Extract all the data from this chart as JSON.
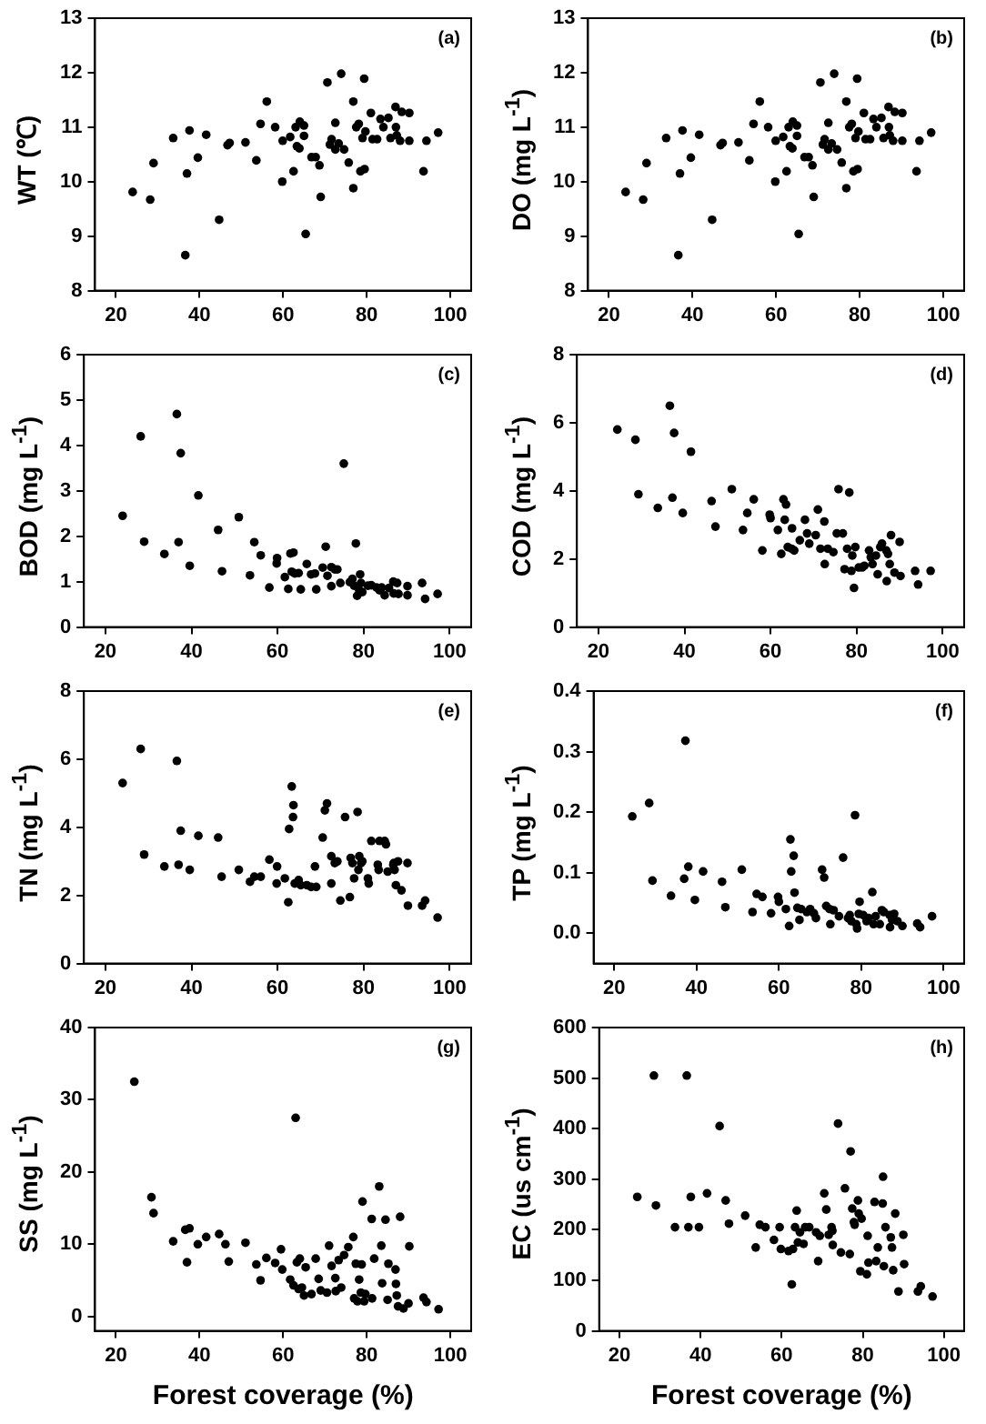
{
  "chart_data": [
    {
      "type": "scatter",
      "ylabel": "WT (℃)",
      "annotations": [
        "(a)"
      ],
      "color": "#000000",
      "marker": "circle",
      "xlim": [
        15,
        105
      ],
      "xticks": [
        20,
        40,
        60,
        80,
        100
      ],
      "ylim": [
        8,
        13
      ],
      "yticks": [
        8,
        9,
        10,
        11,
        12,
        13
      ],
      "x": [
        24,
        28.2,
        29,
        33.7,
        37,
        37.6,
        36.6,
        39.6,
        41.6,
        44.7,
        46.7,
        47.2,
        51,
        53.6,
        54.6,
        56.1,
        58.1,
        59.8,
        59.9,
        61.7,
        62.5,
        63,
        63.3,
        64,
        63.9,
        65,
        65,
        65.4,
        66.8,
        67.8,
        68.7,
        69,
        70.6,
        71.2,
        71.6,
        72.5,
        72.5,
        73.3,
        73.9,
        74.6,
        75.7,
        76.8,
        76.8,
        77.5,
        78.1,
        78.5,
        79,
        79.4,
        79.5,
        79.7,
        81,
        81.4,
        82.5,
        83.3,
        84,
        85.2,
        85.7,
        86.9,
        87,
        87.2,
        88,
        88.4,
        90.2,
        90.2,
        93.6,
        94.3,
        97.1
      ],
      "values": [
        9.81,
        9.67,
        10.34,
        10.8,
        10.15,
        10.94,
        8.65,
        10.44,
        10.86,
        9.3,
        10.67,
        10.71,
        10.72,
        10.39,
        11.06,
        11.47,
        11,
        10,
        10.75,
        10.82,
        10.19,
        11,
        10.65,
        11.1,
        10.61,
        11.03,
        10.84,
        9.04,
        10.45,
        10.45,
        10.3,
        9.72,
        11.82,
        10.68,
        10.78,
        11.08,
        10.59,
        10.7,
        11.98,
        10.59,
        10.35,
        11.47,
        9.88,
        11,
        11.06,
        10.19,
        10.8,
        11.89,
        10.23,
        10.92,
        11.26,
        10.78,
        10.78,
        11.15,
        11,
        11.17,
        10.8,
        11.37,
        11,
        10.85,
        10.75,
        11.28,
        11.26,
        10.75,
        10.19,
        10.75,
        10.9
      ]
    },
    {
      "type": "scatter",
      "ylabel": "DO (mg L$^{-1}$)",
      "annotations": [
        "(b)"
      ],
      "color": "#000000",
      "marker": "circle",
      "xlim": [
        15,
        105
      ],
      "xticks": [
        20,
        40,
        60,
        80,
        100
      ],
      "ylim": [
        8,
        13
      ],
      "yticks": [
        8,
        9,
        10,
        11,
        12,
        13
      ],
      "x": [
        24,
        28.2,
        29,
        33.7,
        37,
        37.6,
        36.6,
        39.6,
        41.6,
        44.7,
        46.7,
        47.2,
        51,
        53.6,
        54.6,
        56.1,
        58.1,
        59.8,
        59.9,
        61.7,
        62.5,
        63,
        63.3,
        64,
        63.9,
        65,
        65,
        65.4,
        66.8,
        67.8,
        68.7,
        69,
        70.6,
        71.2,
        71.6,
        72.5,
        72.5,
        73.3,
        73.9,
        74.6,
        75.7,
        76.8,
        76.8,
        77.5,
        78.1,
        78.5,
        79,
        79.4,
        79.5,
        79.7,
        81,
        81.4,
        82.5,
        83.3,
        84,
        85.2,
        85.7,
        86.9,
        87,
        87.2,
        88,
        88.4,
        90.2,
        90.2,
        93.6,
        94.3,
        97.1
      ],
      "values": [
        9.81,
        9.67,
        10.34,
        10.8,
        10.15,
        10.94,
        8.65,
        10.44,
        10.86,
        9.3,
        10.67,
        10.71,
        10.72,
        10.39,
        11.06,
        11.47,
        11,
        10,
        10.75,
        10.82,
        10.19,
        11,
        10.65,
        11.1,
        10.61,
        11.03,
        10.84,
        9.04,
        10.45,
        10.45,
        10.3,
        9.72,
        11.82,
        10.68,
        10.78,
        11.08,
        10.59,
        10.7,
        11.98,
        10.59,
        10.35,
        11.47,
        9.88,
        11,
        11.06,
        10.19,
        10.8,
        11.89,
        10.23,
        10.92,
        11.26,
        10.78,
        10.78,
        11.15,
        11,
        11.17,
        10.8,
        11.37,
        11,
        10.85,
        10.75,
        11.28,
        11.26,
        10.75,
        10.19,
        10.75,
        10.9
      ]
    },
    {
      "type": "scatter",
      "ylabel": "BOD (mg L$^{-1}$)",
      "annotations": [
        "(c)"
      ],
      "color": "#000000",
      "marker": "circle",
      "xlim": [
        15,
        105
      ],
      "xticks": [
        20,
        40,
        60,
        80,
        100
      ],
      "ylim": [
        0,
        6
      ],
      "yticks": [
        0,
        1,
        2,
        3,
        4,
        5,
        6
      ],
      "x": [
        24,
        28.2,
        29,
        33.7,
        36.6,
        37,
        37.5,
        39.6,
        41.6,
        46.2,
        47.1,
        51,
        53.6,
        54.6,
        56.1,
        58.1,
        59.8,
        59.9,
        61.7,
        62.5,
        63,
        63.7,
        63.3,
        64,
        64.9,
        65.4,
        66.8,
        67.8,
        68.7,
        69,
        70.5,
        71.2,
        71.6,
        72.5,
        72.5,
        73.3,
        73.9,
        74.6,
        75.4,
        76.8,
        77.4,
        77.8,
        78.2,
        78.5,
        79,
        79.2,
        79.4,
        79.7,
        81,
        81.8,
        83,
        83.7,
        84.2,
        84.9,
        85.9,
        86.9,
        87,
        87.8,
        88.1,
        90.2,
        90.2,
        93.6,
        94.3,
        97.2
      ],
      "values": [
        2.45,
        4.2,
        1.88,
        1.61,
        4.69,
        1.87,
        3.83,
        1.35,
        2.9,
        2.14,
        1.23,
        2.42,
        1.14,
        1.87,
        1.58,
        0.87,
        1.4,
        1.52,
        1.1,
        0.84,
        1.62,
        1.64,
        1.22,
        1.18,
        1.19,
        0.83,
        1.39,
        1.16,
        1.18,
        0.83,
        1.31,
        1.77,
        1.13,
        1.32,
        0.9,
        1.27,
        1.27,
        0.97,
        3.6,
        0.99,
        1.06,
        0.91,
        1.84,
        0.69,
        0.81,
        1.16,
        0.97,
        0.77,
        0.91,
        0.92,
        0.87,
        0.81,
        0.87,
        0.7,
        0.86,
        1,
        0.74,
        0.97,
        0.73,
        0.7,
        0.9,
        0.97,
        0.62,
        0.73
      ]
    },
    {
      "type": "scatter",
      "ylabel": "COD (mg L$^{-1}$)",
      "annotations": [
        "(d)"
      ],
      "color": "#000000",
      "marker": "circle",
      "xlim": [
        15,
        105
      ],
      "xticks": [
        20,
        40,
        60,
        80,
        100
      ],
      "ylim": [
        0,
        8
      ],
      "yticks": [
        0,
        2,
        4,
        6,
        8
      ],
      "x": [
        24.4,
        28.6,
        29.3,
        33.8,
        36.6,
        37.2,
        37.6,
        39.6,
        41.5,
        46.3,
        47.2,
        51,
        53.6,
        54.6,
        56.1,
        58.1,
        59.8,
        60,
        61.7,
        62.5,
        63,
        63.6,
        63.3,
        64,
        64.9,
        65.5,
        65,
        66.8,
        68,
        68.5,
        69,
        70.5,
        71,
        71.6,
        72.5,
        72.6,
        73.3,
        74.6,
        75.4,
        75.8,
        76.8,
        77.2,
        77.8,
        78.3,
        78.8,
        79,
        79.4,
        79.7,
        80.5,
        81.3,
        81.8,
        82.9,
        83.3,
        83.7,
        84.5,
        84.9,
        85.5,
        85.9,
        86.9,
        87,
        87.3,
        87.7,
        88,
        88.8,
        90,
        90.2,
        93.6,
        94.3,
        97.2
      ],
      "values": [
        5.8,
        5.5,
        3.9,
        3.5,
        6.5,
        3.8,
        5.7,
        3.35,
        5.15,
        3.7,
        2.95,
        4.05,
        2.85,
        3.35,
        3.75,
        2.25,
        3.3,
        3.2,
        2.85,
        2.15,
        3.75,
        3.6,
        3.15,
        2.35,
        2.3,
        2.25,
        2.9,
        2.55,
        3.15,
        2.75,
        2.45,
        2.7,
        3.45,
        2.3,
        3.1,
        1.85,
        2.3,
        2.2,
        2.75,
        4.05,
        2.75,
        1.7,
        2.3,
        3.95,
        1.65,
        2.1,
        1.15,
        2.35,
        1.75,
        1.75,
        1.8,
        2.25,
        2.05,
        1.85,
        2.1,
        1.55,
        2.35,
        2.45,
        2.25,
        1.35,
        2.15,
        1.85,
        2.7,
        1.6,
        2.5,
        1.5,
        1.65,
        1.25,
        1.65
      ]
    },
    {
      "type": "scatter",
      "ylabel": "TN (mg L$^{-1}$)",
      "annotations": [
        "(e)"
      ],
      "color": "#000000",
      "marker": "circle",
      "xlim": [
        15,
        105
      ],
      "xticks": [
        20,
        40,
        60,
        80,
        100
      ],
      "ylim": [
        0,
        8
      ],
      "yticks": [
        0,
        2,
        4,
        6,
        8
      ],
      "x": [
        24,
        28.2,
        29,
        33.7,
        36.6,
        37,
        37.5,
        39.6,
        41.6,
        46.2,
        47,
        51,
        53.6,
        54.6,
        56.1,
        58.1,
        59.8,
        59.9,
        61.7,
        62.5,
        62.7,
        63.3,
        63.7,
        63.6,
        64,
        64.9,
        65.4,
        66.8,
        67.8,
        68.7,
        69,
        70.5,
        71,
        71.5,
        72.5,
        72.5,
        73.3,
        73.9,
        74.6,
        75.7,
        76.8,
        77,
        77.4,
        77.8,
        78.6,
        78.8,
        79,
        79.4,
        79.7,
        81,
        81.2,
        81.8,
        83.3,
        83.5,
        83.7,
        84.9,
        85.2,
        85.6,
        86.9,
        87,
        87.2,
        87.5,
        88,
        88.8,
        90.2,
        90.3,
        93.6,
        94.3,
        97.2
      ],
      "values": [
        5.3,
        6.3,
        3.2,
        2.85,
        5.95,
        2.9,
        3.9,
        2.75,
        3.75,
        3.7,
        2.55,
        2.75,
        2.4,
        2.55,
        2.55,
        3.05,
        2.35,
        2.85,
        2.5,
        1.8,
        3.95,
        5.2,
        4.65,
        4.3,
        2.35,
        2.45,
        2.3,
        2.3,
        2.25,
        2.85,
        2.25,
        3.7,
        4.5,
        4.7,
        2.35,
        3.15,
        2.95,
        3,
        1.85,
        4.3,
        1.95,
        3.1,
        2.95,
        2.5,
        4.45,
        2.75,
        3.15,
        2.95,
        3,
        2.5,
        2.35,
        3.6,
        2.9,
        2.75,
        3.6,
        3.6,
        3.5,
        2.7,
        2.9,
        2.95,
        2.75,
        2.3,
        3,
        2.15,
        2.95,
        1.7,
        1.7,
        1.85,
        1.35
      ]
    },
    {
      "type": "scatter",
      "ylabel": "TP (mg L$^{-1}$)",
      "annotations": [
        "(f)"
      ],
      "color": "#000000",
      "marker": "circle",
      "xlim": [
        15,
        105
      ],
      "xticks": [
        20,
        40,
        60,
        80,
        100
      ],
      "ylim": [
        -0.05,
        0.4
      ],
      "yticks": [
        {
          "value": 0,
          "label": "0.0"
        },
        0.1,
        0.2,
        0.3,
        0.4
      ],
      "x": [
        24.4,
        28.5,
        29.3,
        33.8,
        37,
        37.3,
        38,
        39.6,
        41.6,
        46.2,
        47,
        51,
        53.6,
        54.6,
        56,
        58.1,
        59.8,
        60,
        61.7,
        62.5,
        62.8,
        63,
        63.6,
        63.8,
        64.5,
        65,
        65.4,
        66.8,
        67.6,
        68.5,
        69,
        70.5,
        71,
        71.5,
        72.3,
        72.5,
        73.3,
        74.6,
        75.6,
        76.8,
        77.2,
        77.6,
        78.5,
        78.8,
        79,
        79.4,
        79.6,
        80.5,
        81.3,
        81.8,
        82.7,
        83,
        83.5,
        84.5,
        85,
        85.5,
        86.9,
        87,
        87.5,
        88,
        88.8,
        90,
        93.6,
        94.3,
        97.2
      ],
      "values": [
        0.193,
        0.215,
        0.087,
        0.062,
        0.09,
        0.318,
        0.11,
        0.055,
        0.102,
        0.085,
        0.043,
        0.105,
        0.035,
        0.065,
        0.06,
        0.033,
        0.06,
        0.052,
        0.04,
        0.012,
        0.155,
        0.102,
        0.128,
        0.067,
        0.042,
        0.022,
        0.04,
        0.035,
        0.04,
        0.033,
        0.025,
        0.105,
        0.092,
        0.045,
        0.04,
        0.015,
        0.038,
        0.028,
        0.125,
        0.025,
        0.03,
        0.02,
        0.195,
        0.015,
        0.008,
        0.032,
        0.052,
        0.03,
        0.02,
        0.025,
        0.068,
        0.015,
        0.028,
        0.015,
        0.038,
        0.035,
        0.03,
        0.01,
        0.022,
        0.032,
        0.02,
        0.012,
        0.016,
        0.01,
        0.028
      ]
    },
    {
      "type": "scatter",
      "ylabel": "SS (mg L$^{-1}$)",
      "xlabel": "Forest coverage (%)",
      "annotations": [
        "(g)"
      ],
      "color": "#000000",
      "marker": "circle",
      "xlim": [
        15,
        105
      ],
      "xticks": [
        20,
        40,
        60,
        80,
        100
      ],
      "ylim": [
        -2,
        40
      ],
      "yticks": [
        0,
        10,
        20,
        30,
        40
      ],
      "x": [
        24.4,
        28.5,
        29,
        33.7,
        36.6,
        37,
        37.6,
        39.6,
        41.6,
        44.7,
        46.2,
        47,
        51,
        53.6,
        54.6,
        56,
        58.1,
        59.5,
        59.8,
        61.7,
        62.5,
        63,
        63.3,
        63.7,
        64,
        64.5,
        65,
        65.4,
        66.8,
        67.8,
        68.5,
        69,
        70.5,
        71,
        71.6,
        72.5,
        72.6,
        73.3,
        73.9,
        74.6,
        75.6,
        76.8,
        77,
        77.4,
        77.8,
        78.2,
        78.6,
        78.8,
        79,
        79.4,
        79.7,
        81.2,
        81.3,
        81.8,
        83,
        83.5,
        83.7,
        84.5,
        85,
        85.2,
        86.9,
        87,
        87.2,
        87.5,
        88,
        88.8,
        90,
        90.2,
        93.6,
        94.3,
        97.2
      ],
      "values": [
        32.5,
        16.5,
        14.3,
        10.4,
        12,
        7.5,
        12.2,
        10,
        11,
        11.4,
        10,
        7.6,
        10.2,
        7.2,
        5,
        8.1,
        7.4,
        9.3,
        6.5,
        5.1,
        4.3,
        27.5,
        7.5,
        3.8,
        8,
        4,
        2.9,
        6.8,
        3.1,
        8,
        5.2,
        3.6,
        3.3,
        9.8,
        7,
        5.3,
        3.5,
        7.8,
        4,
        8.5,
        9.6,
        11,
        2.5,
        7.3,
        2.1,
        5.1,
        3.3,
        7.2,
        15.9,
        2.1,
        3.1,
        13.5,
        2.5,
        8,
        18,
        9.8,
        4.6,
        13.4,
        2.3,
        7.3,
        6.5,
        4.5,
        2.9,
        1.4,
        13.8,
        1.1,
        1.8,
        9.7,
        2.6,
        2,
        1
      ]
    },
    {
      "type": "scatter",
      "ylabel": "EC (us cm$^{-1}$)",
      "xlabel": "Forest coverage (%)",
      "annotations": [
        "(h)"
      ],
      "color": "#000000",
      "marker": "circle",
      "xlim": [
        15,
        105
      ],
      "xticks": [
        20,
        40,
        60,
        80,
        100
      ],
      "ylim": [
        0,
        600
      ],
      "yticks": [
        0,
        100,
        200,
        300,
        400,
        500,
        600
      ],
      "x": [
        24.4,
        28.5,
        29,
        33.7,
        36.6,
        37,
        37.6,
        39.6,
        41.6,
        44.7,
        46.2,
        47,
        51,
        53.6,
        54.6,
        56,
        58.1,
        59.5,
        59.8,
        61.7,
        62.5,
        62.8,
        63.3,
        63.7,
        64,
        64.5,
        65.4,
        65.8,
        66.8,
        68.5,
        69,
        69.4,
        70.5,
        71,
        71.6,
        72.3,
        72.5,
        72.6,
        73.9,
        74.6,
        75.6,
        76.8,
        77,
        77.4,
        77.8,
        78,
        78.8,
        79,
        79.4,
        79.7,
        81,
        81.2,
        81.4,
        82.9,
        83.3,
        83.7,
        84.9,
        85,
        85.2,
        85.6,
        86.9,
        87.2,
        87.5,
        88,
        88.8,
        90,
        90.2,
        93.6,
        94.3,
        97.2
      ],
      "values": [
        265,
        505,
        248,
        205,
        505,
        205,
        265,
        205,
        272,
        405,
        258,
        212,
        228,
        165,
        210,
        205,
        180,
        205,
        162,
        158,
        92,
        162,
        205,
        238,
        175,
        195,
        172,
        205,
        205,
        195,
        138,
        188,
        272,
        240,
        190,
        205,
        198,
        170,
        410,
        155,
        282,
        152,
        355,
        242,
        215,
        210,
        258,
        232,
        118,
        222,
        112,
        188,
        135,
        255,
        138,
        165,
        252,
        305,
        128,
        205,
        185,
        165,
        120,
        232,
        78,
        190,
        132,
        78,
        88,
        68
      ]
    }
  ]
}
